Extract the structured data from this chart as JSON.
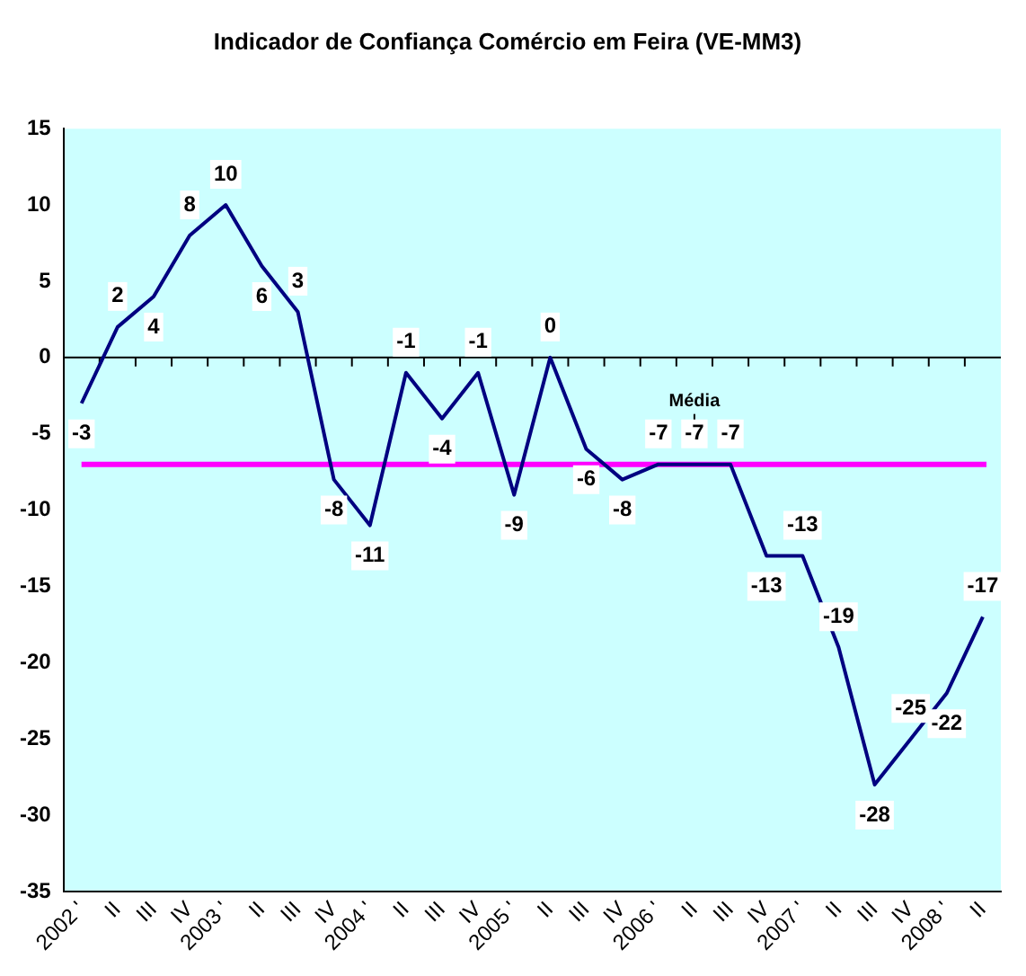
{
  "chart_data": {
    "type": "line",
    "title": "Indicador de Confiança Comércio em Feira (VE-MM3)",
    "categories": [
      "2002 '",
      "II",
      "III",
      "IV",
      "2003 '",
      "II",
      "III",
      "IV",
      "2004 '",
      "II",
      "III",
      "IV",
      "2005 '",
      "II",
      "III",
      "IV",
      "2006 '",
      "II",
      "III",
      "IV",
      "2007 '",
      "II",
      "III",
      "IV",
      "2008 '",
      "II"
    ],
    "series": [
      {
        "color": "#000080",
        "values": [
          -3,
          2,
          4,
          8,
          10,
          6,
          3,
          -8,
          -11,
          -1,
          -4,
          -1,
          -9,
          0,
          -6,
          -8,
          -7,
          -7,
          -7,
          -13,
          -13,
          -19,
          -28,
          -25,
          -22,
          -17
        ]
      }
    ],
    "ylim": [
      -35,
      15
    ],
    "yticks": [
      -35,
      -30,
      -25,
      -20,
      -15,
      -10,
      -5,
      0,
      5,
      10,
      15
    ],
    "ref_lines": [
      {
        "axis": "y",
        "value": -7,
        "label": "Média",
        "color": "#ff00ff"
      }
    ],
    "data_labels": true,
    "legend": false,
    "marker": "none"
  }
}
